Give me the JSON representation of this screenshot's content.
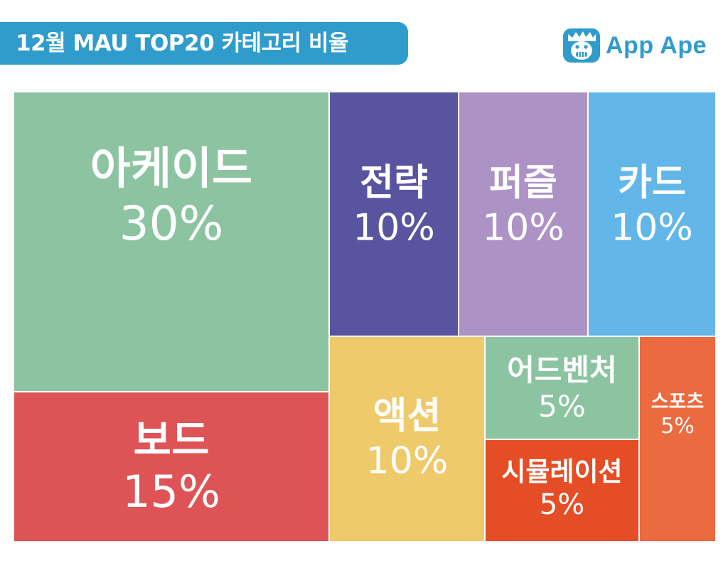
{
  "header": {
    "title": "12월 MAU TOP20 카테고리 비율",
    "brand_name": "App Ape",
    "brand_icon": "ape-face-icon",
    "brand_color": "#2f9ccc"
  },
  "chart_data": {
    "type": "treemap",
    "title": "12월 MAU TOP20 카테고리 비율",
    "unit": "%",
    "categories": [
      "아케이드",
      "보드",
      "전략",
      "퍼즐",
      "카드",
      "액션",
      "어드벤처",
      "시뮬레이션",
      "스포츠"
    ],
    "values": [
      30,
      15,
      10,
      10,
      10,
      10,
      5,
      5,
      5
    ],
    "labels": [
      "30%",
      "15%",
      "10%",
      "10%",
      "10%",
      "10%",
      "5%",
      "5%",
      "5%"
    ],
    "colors": [
      "#8cc4a2",
      "#de5355",
      "#59549f",
      "#ad92c6",
      "#62b6e8",
      "#eeca6b",
      "#8cc4a2",
      "#e44d25",
      "#ec6a3f"
    ]
  }
}
